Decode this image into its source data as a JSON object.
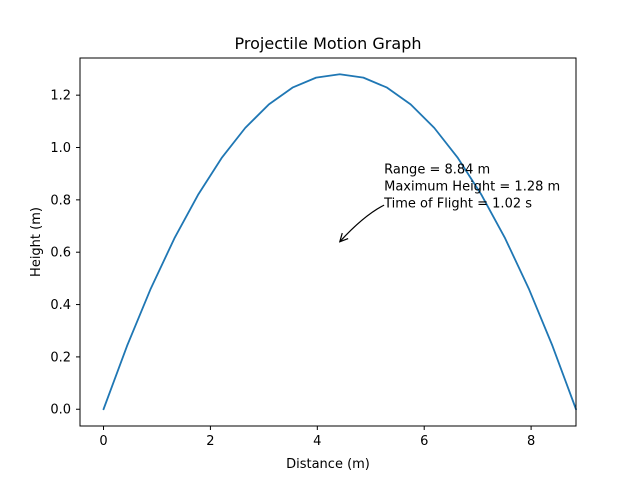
{
  "chart_data": {
    "type": "line",
    "title": "Projectile Motion Graph",
    "xlabel": "Distance (m)",
    "ylabel": "Height (m)",
    "xlim": [
      -0.44,
      8.84
    ],
    "ylim": [
      -0.064,
      1.342
    ],
    "xticks": [
      0,
      2,
      4,
      6,
      8
    ],
    "xtick_labels": [
      "0",
      "2",
      "4",
      "6",
      "8"
    ],
    "yticks": [
      0.0,
      0.2,
      0.4,
      0.6,
      0.8,
      1.0,
      1.2
    ],
    "ytick_labels": [
      "0.0",
      "0.2",
      "0.4",
      "0.6",
      "0.8",
      "1.0",
      "1.2"
    ],
    "grid": false,
    "series": [
      {
        "color": "#1f77b4",
        "x": [
          0.0,
          0.442,
          0.884,
          1.326,
          1.768,
          2.21,
          2.652,
          3.094,
          3.536,
          3.978,
          4.42,
          4.862,
          5.304,
          5.746,
          6.188,
          6.63,
          7.072,
          7.514,
          7.956,
          8.398,
          8.84
        ],
        "y": [
          0.0,
          0.243,
          0.461,
          0.653,
          0.819,
          0.96,
          1.075,
          1.165,
          1.229,
          1.267,
          1.28,
          1.267,
          1.229,
          1.165,
          1.075,
          0.96,
          0.819,
          0.653,
          0.461,
          0.243,
          0.0
        ]
      }
    ],
    "annotation": {
      "lines": [
        "Range = 8.84 m",
        "Maximum Height = 1.28 m",
        "Time of Flight = 1.02 s"
      ],
      "text_at": [
        5.25,
        0.9
      ],
      "arrow_from": [
        5.25,
        0.78
      ],
      "arrow_to": [
        4.42,
        0.64
      ]
    }
  }
}
